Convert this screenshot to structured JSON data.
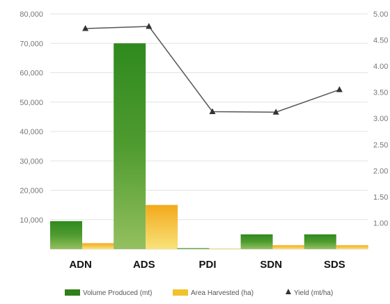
{
  "chart_data": {
    "type": "bar",
    "categories": [
      "ADN",
      "ADS",
      "PDI",
      "SDN",
      "SDS"
    ],
    "y_left": {
      "ylim": [
        0,
        80000
      ],
      "ticks": [
        10000,
        20000,
        30000,
        40000,
        50000,
        60000,
        70000,
        80000
      ],
      "tick_labels": [
        "10,000",
        "20,000",
        "30,000",
        "40,000",
        "50,000",
        "60,000",
        "70,000",
        "80,000"
      ]
    },
    "y_right": {
      "ylim": [
        0.5,
        5.0
      ],
      "ticks": [
        1.0,
        1.5,
        2.0,
        2.5,
        3.0,
        3.5,
        4.0,
        4.5,
        5.0
      ],
      "tick_labels": [
        "1.00",
        "1.50",
        "2.00",
        "2.50",
        "3.00",
        "3.50",
        "4.00",
        "4.50",
        "5.00"
      ]
    },
    "series": [
      {
        "name": "Volume Produced (mt)",
        "kind": "bar",
        "axis": "left",
        "color": "#3f8f1f",
        "values": [
          9500,
          70000,
          300,
          5000,
          5000
        ]
      },
      {
        "name": "Area Harvested (ha)",
        "kind": "bar",
        "axis": "left",
        "color": "#f2bb20",
        "values": [
          2000,
          15000,
          150,
          1300,
          1300
        ]
      },
      {
        "name": "Yield (mt/ha)",
        "kind": "line",
        "axis": "right",
        "color": "#555555",
        "values": [
          4.72,
          4.76,
          3.13,
          3.12,
          3.55
        ]
      }
    ],
    "grid": true,
    "legend_position": "bottom"
  }
}
